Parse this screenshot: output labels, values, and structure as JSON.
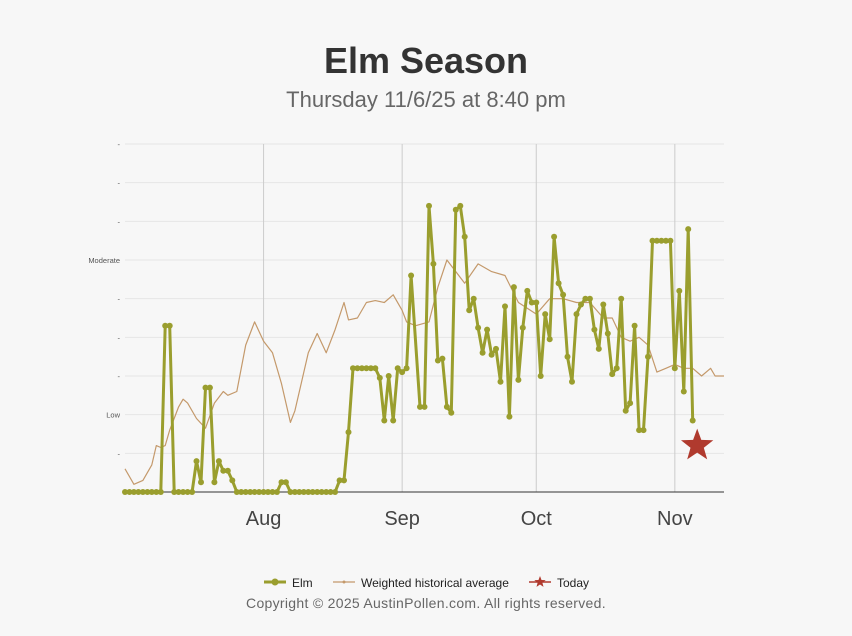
{
  "title": "Elm Season",
  "subtitle": "Thursday 11/6/25 at 8:40 pm",
  "copyright": "Copyright © 2025 AustinPollen.com.  All rights reserved.",
  "colors": {
    "elm": "#9a9e2e",
    "average": "#c4996b",
    "today": "#b03a2e",
    "axis": "#333333",
    "grid": "#e6e6e6",
    "vgrid": "#cccccc"
  },
  "chart_data": {
    "type": "line",
    "title": "Elm Season",
    "subtitle": "Thursday 11/6/25 at 8:40 pm",
    "xlabel": "",
    "ylabel": "",
    "x_range": [
      "2025-07-01",
      "2025-11-12"
    ],
    "y_range": [
      0,
      9
    ],
    "y_ticks": [
      {
        "value": 1,
        "label": "-"
      },
      {
        "value": 2,
        "label": "Low"
      },
      {
        "value": 3,
        "label": "-"
      },
      {
        "value": 4,
        "label": "-"
      },
      {
        "value": 5,
        "label": "-"
      },
      {
        "value": 6,
        "label": "Moderate"
      },
      {
        "value": 7,
        "label": "-"
      },
      {
        "value": 8,
        "label": "-"
      },
      {
        "value": 9,
        "label": "-"
      }
    ],
    "x_ticks": [
      {
        "date": "2025-08-01",
        "label": "Aug"
      },
      {
        "date": "2025-09-01",
        "label": "Sep"
      },
      {
        "date": "2025-10-01",
        "label": "Oct"
      },
      {
        "date": "2025-11-01",
        "label": "Nov"
      }
    ],
    "grid": true,
    "legend_position": "bottom",
    "series": [
      {
        "name": "Elm",
        "marker": "circle",
        "points": [
          [
            "2025-07-01",
            0
          ],
          [
            "2025-07-02",
            0
          ],
          [
            "2025-07-03",
            0
          ],
          [
            "2025-07-04",
            0
          ],
          [
            "2025-07-05",
            0
          ],
          [
            "2025-07-06",
            0
          ],
          [
            "2025-07-07",
            0
          ],
          [
            "2025-07-08",
            0
          ],
          [
            "2025-07-09",
            0
          ],
          [
            "2025-07-10",
            4.3
          ],
          [
            "2025-07-11",
            4.3
          ],
          [
            "2025-07-12",
            0
          ],
          [
            "2025-07-13",
            0
          ],
          [
            "2025-07-14",
            0
          ],
          [
            "2025-07-15",
            0
          ],
          [
            "2025-07-16",
            0
          ],
          [
            "2025-07-17",
            0.8
          ],
          [
            "2025-07-18",
            0.25
          ],
          [
            "2025-07-19",
            2.7
          ],
          [
            "2025-07-20",
            2.7
          ],
          [
            "2025-07-21",
            0.25
          ],
          [
            "2025-07-22",
            0.8
          ],
          [
            "2025-07-23",
            0.55
          ],
          [
            "2025-07-24",
            0.55
          ],
          [
            "2025-07-25",
            0.3
          ],
          [
            "2025-07-26",
            0
          ],
          [
            "2025-07-27",
            0
          ],
          [
            "2025-07-28",
            0
          ],
          [
            "2025-07-29",
            0
          ],
          [
            "2025-07-30",
            0
          ],
          [
            "2025-07-31",
            0
          ],
          [
            "2025-08-01",
            0
          ],
          [
            "2025-08-02",
            0
          ],
          [
            "2025-08-03",
            0
          ],
          [
            "2025-08-04",
            0
          ],
          [
            "2025-08-05",
            0.25
          ],
          [
            "2025-08-06",
            0.25
          ],
          [
            "2025-08-07",
            0
          ],
          [
            "2025-08-08",
            0
          ],
          [
            "2025-08-09",
            0
          ],
          [
            "2025-08-10",
            0
          ],
          [
            "2025-08-11",
            0
          ],
          [
            "2025-08-12",
            0
          ],
          [
            "2025-08-13",
            0
          ],
          [
            "2025-08-14",
            0
          ],
          [
            "2025-08-15",
            0
          ],
          [
            "2025-08-16",
            0
          ],
          [
            "2025-08-17",
            0
          ],
          [
            "2025-08-18",
            0.3
          ],
          [
            "2025-08-19",
            0.3
          ],
          [
            "2025-08-20",
            1.55
          ],
          [
            "2025-08-21",
            3.2
          ],
          [
            "2025-08-22",
            3.2
          ],
          [
            "2025-08-23",
            3.2
          ],
          [
            "2025-08-24",
            3.2
          ],
          [
            "2025-08-25",
            3.2
          ],
          [
            "2025-08-26",
            3.2
          ],
          [
            "2025-08-27",
            2.95
          ],
          [
            "2025-08-28",
            1.85
          ],
          [
            "2025-08-29",
            3.0
          ],
          [
            "2025-08-30",
            1.85
          ],
          [
            "2025-08-31",
            3.2
          ],
          [
            "2025-09-01",
            3.1
          ],
          [
            "2025-09-02",
            3.2
          ],
          [
            "2025-09-03",
            5.6
          ],
          [
            "2025-09-05",
            2.2
          ],
          [
            "2025-09-06",
            2.2
          ],
          [
            "2025-09-07",
            7.4
          ],
          [
            "2025-09-08",
            5.9
          ],
          [
            "2025-09-09",
            3.4
          ],
          [
            "2025-09-10",
            3.45
          ],
          [
            "2025-09-11",
            2.2
          ],
          [
            "2025-09-12",
            2.05
          ],
          [
            "2025-09-13",
            7.3
          ],
          [
            "2025-09-14",
            7.4
          ],
          [
            "2025-09-15",
            6.6
          ],
          [
            "2025-09-16",
            4.7
          ],
          [
            "2025-09-17",
            5.0
          ],
          [
            "2025-09-18",
            4.25
          ],
          [
            "2025-09-19",
            3.6
          ],
          [
            "2025-09-20",
            4.2
          ],
          [
            "2025-09-21",
            3.55
          ],
          [
            "2025-09-22",
            3.7
          ],
          [
            "2025-09-23",
            2.85
          ],
          [
            "2025-09-24",
            4.8
          ],
          [
            "2025-09-25",
            1.95
          ],
          [
            "2025-09-26",
            5.3
          ],
          [
            "2025-09-27",
            2.9
          ],
          [
            "2025-09-28",
            4.25
          ],
          [
            "2025-09-29",
            5.2
          ],
          [
            "2025-09-30",
            4.9
          ],
          [
            "2025-10-01",
            4.9
          ],
          [
            "2025-10-02",
            3.0
          ],
          [
            "2025-10-03",
            4.6
          ],
          [
            "2025-10-04",
            3.95
          ],
          [
            "2025-10-05",
            6.6
          ],
          [
            "2025-10-06",
            5.4
          ],
          [
            "2025-10-07",
            5.1
          ],
          [
            "2025-10-08",
            3.5
          ],
          [
            "2025-10-09",
            2.85
          ],
          [
            "2025-10-10",
            4.6
          ],
          [
            "2025-10-11",
            4.85
          ],
          [
            "2025-10-12",
            5.0
          ],
          [
            "2025-10-13",
            5.0
          ],
          [
            "2025-10-14",
            4.2
          ],
          [
            "2025-10-15",
            3.7
          ],
          [
            "2025-10-16",
            4.85
          ],
          [
            "2025-10-17",
            4.1
          ],
          [
            "2025-10-18",
            3.05
          ],
          [
            "2025-10-19",
            3.2
          ],
          [
            "2025-10-20",
            5.0
          ],
          [
            "2025-10-21",
            2.1
          ],
          [
            "2025-10-22",
            2.3
          ],
          [
            "2025-10-23",
            4.3
          ],
          [
            "2025-10-24",
            1.6
          ],
          [
            "2025-10-25",
            1.6
          ],
          [
            "2025-10-26",
            3.5
          ],
          [
            "2025-10-27",
            6.5
          ],
          [
            "2025-10-28",
            6.5
          ],
          [
            "2025-10-29",
            6.5
          ],
          [
            "2025-10-30",
            6.5
          ],
          [
            "2025-10-31",
            6.5
          ],
          [
            "2025-11-01",
            3.2
          ],
          [
            "2025-11-02",
            5.2
          ],
          [
            "2025-11-03",
            2.6
          ],
          [
            "2025-11-04",
            6.8
          ],
          [
            "2025-11-05",
            1.85
          ]
        ]
      },
      {
        "name": "Weighted historical average",
        "marker": "small-circle",
        "points": [
          [
            "2025-07-01",
            0.6
          ],
          [
            "2025-07-03",
            0.2
          ],
          [
            "2025-07-05",
            0.3
          ],
          [
            "2025-07-07",
            0.7
          ],
          [
            "2025-07-08",
            1.2
          ],
          [
            "2025-07-09",
            1.15
          ],
          [
            "2025-07-10",
            1.2
          ],
          [
            "2025-07-11",
            1.6
          ],
          [
            "2025-07-13",
            2.2
          ],
          [
            "2025-07-14",
            2.4
          ],
          [
            "2025-07-15",
            2.3
          ],
          [
            "2025-07-17",
            1.9
          ],
          [
            "2025-07-19",
            1.65
          ],
          [
            "2025-07-21",
            2.3
          ],
          [
            "2025-07-23",
            2.6
          ],
          [
            "2025-07-24",
            2.5
          ],
          [
            "2025-07-26",
            2.6
          ],
          [
            "2025-07-28",
            3.8
          ],
          [
            "2025-07-30",
            4.4
          ],
          [
            "2025-08-01",
            3.9
          ],
          [
            "2025-08-03",
            3.6
          ],
          [
            "2025-08-05",
            2.8
          ],
          [
            "2025-08-07",
            1.8
          ],
          [
            "2025-08-08",
            2.1
          ],
          [
            "2025-08-11",
            3.6
          ],
          [
            "2025-08-13",
            4.1
          ],
          [
            "2025-08-15",
            3.6
          ],
          [
            "2025-08-17",
            4.2
          ],
          [
            "2025-08-19",
            4.9
          ],
          [
            "2025-08-20",
            4.45
          ],
          [
            "2025-08-22",
            4.5
          ],
          [
            "2025-08-24",
            4.9
          ],
          [
            "2025-08-26",
            4.95
          ],
          [
            "2025-08-28",
            4.9
          ],
          [
            "2025-08-30",
            5.1
          ],
          [
            "2025-09-01",
            4.7
          ],
          [
            "2025-09-02",
            4.4
          ],
          [
            "2025-09-04",
            4.3
          ],
          [
            "2025-09-07",
            4.4
          ],
          [
            "2025-09-09",
            5.3
          ],
          [
            "2025-09-11",
            6.0
          ],
          [
            "2025-09-13",
            5.7
          ],
          [
            "2025-09-15",
            5.4
          ],
          [
            "2025-09-18",
            5.9
          ],
          [
            "2025-09-21",
            5.7
          ],
          [
            "2025-09-24",
            5.6
          ],
          [
            "2025-09-27",
            4.9
          ],
          [
            "2025-10-01",
            4.6
          ],
          [
            "2025-10-04",
            5.0
          ],
          [
            "2025-10-07",
            5.0
          ],
          [
            "2025-10-10",
            4.9
          ],
          [
            "2025-10-13",
            4.9
          ],
          [
            "2025-10-16",
            4.5
          ],
          [
            "2025-10-18",
            4.5
          ],
          [
            "2025-10-20",
            4.0
          ],
          [
            "2025-10-22",
            3.9
          ],
          [
            "2025-10-24",
            4.0
          ],
          [
            "2025-10-26",
            3.8
          ],
          [
            "2025-10-28",
            3.1
          ],
          [
            "2025-10-30",
            3.2
          ],
          [
            "2025-11-01",
            3.3
          ],
          [
            "2025-11-03",
            3.2
          ],
          [
            "2025-11-05",
            3.2
          ],
          [
            "2025-11-07",
            3.0
          ],
          [
            "2025-11-09",
            3.2
          ],
          [
            "2025-11-10",
            3.0
          ],
          [
            "2025-11-12",
            3.0
          ]
        ]
      },
      {
        "name": "Today",
        "marker": "star",
        "points": [
          [
            "2025-11-06",
            1.2
          ]
        ]
      }
    ]
  }
}
